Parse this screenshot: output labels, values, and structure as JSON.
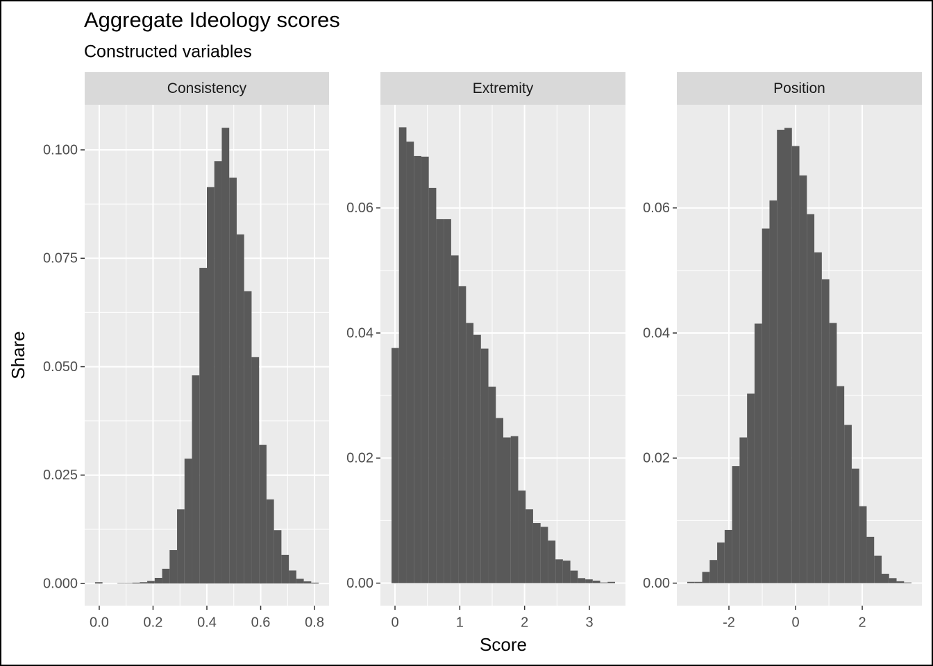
{
  "chart_data": {
    "type": "histogram",
    "title": "Aggregate Ideology scores",
    "subtitle": "Constructed variables",
    "x_label": "Score",
    "y_label": "Share",
    "color": "#595959",
    "grid": true,
    "facets": [
      {
        "name": "Consistency",
        "bins": [
          -0.0155,
          0.0122,
          0.0399,
          0.0676,
          0.0953,
          0.123,
          0.1507,
          0.1784,
          0.2061,
          0.2338,
          0.2615,
          0.2892,
          0.3169,
          0.3446,
          0.3723,
          0.4,
          0.4277,
          0.4554,
          0.4831,
          0.5108,
          0.5385,
          0.5662,
          0.5939,
          0.6216,
          0.6493,
          0.677,
          0.7047,
          0.7324,
          0.7601,
          0.7878,
          0.8155
        ],
        "counts": [
          0.0003,
          0,
          0,
          0.0001,
          0.0001,
          0.0002,
          0.0003,
          0.0006,
          0.0013,
          0.0034,
          0.0077,
          0.0171,
          0.0288,
          0.048,
          0.0728,
          0.0914,
          0.0974,
          0.1051,
          0.0936,
          0.0805,
          0.0674,
          0.0522,
          0.032,
          0.0194,
          0.0123,
          0.0066,
          0.003,
          0.0011,
          0.0005,
          0.0002
        ],
        "xlim": [
          -0.054,
          0.854
        ],
        "ylim": [
          -0.0051,
          0.1104
        ],
        "xticks": [
          {
            "value": 0,
            "label": "0.0"
          },
          {
            "value": 0.2,
            "label": "0.2"
          },
          {
            "value": 0.4,
            "label": "0.4"
          },
          {
            "value": 0.6,
            "label": "0.6"
          },
          {
            "value": 0.8,
            "label": "0.8"
          }
        ],
        "yticks": [
          {
            "value": 0,
            "label": "0.000"
          },
          {
            "value": 0.025,
            "label": "0.025"
          },
          {
            "value": 0.05,
            "label": "0.050"
          },
          {
            "value": 0.075,
            "label": "0.075"
          },
          {
            "value": 0.1,
            "label": "0.100"
          }
        ]
      },
      {
        "name": "Extremity",
        "bins": [
          -0.0536,
          0.0614,
          0.1764,
          0.2914,
          0.4064,
          0.5214,
          0.6364,
          0.7514,
          0.8664,
          0.9814,
          1.0964,
          1.2114,
          1.3264,
          1.4414,
          1.5564,
          1.6714,
          1.7864,
          1.9014,
          2.0164,
          2.1314,
          2.2464,
          2.3614,
          2.4764,
          2.5914,
          2.7064,
          2.8214,
          2.9364,
          3.0514,
          3.1664,
          3.2814,
          3.3964
        ],
        "counts": [
          0.0376,
          0.0729,
          0.0706,
          0.0683,
          0.0682,
          0.0632,
          0.0582,
          0.0582,
          0.0524,
          0.0475,
          0.0416,
          0.0397,
          0.0375,
          0.0314,
          0.0264,
          0.0233,
          0.0235,
          0.0148,
          0.0118,
          0.0096,
          0.009,
          0.0068,
          0.0038,
          0.0036,
          0.002,
          0.0008,
          0.0006,
          0.0004,
          0.0001,
          0.0002
        ],
        "xlim": [
          -0.225,
          3.557
        ],
        "ylim": [
          -0.0036,
          0.0765
        ],
        "xticks": [
          0,
          1,
          2,
          3
        ],
        "yticks": [
          {
            "value": 0,
            "label": "0.00"
          },
          {
            "value": 0.02,
            "label": "0.02"
          },
          {
            "value": 0.04,
            "label": "0.04"
          },
          {
            "value": 0.06,
            "label": "0.06"
          }
        ]
      },
      {
        "name": "Position",
        "bins": [
          -3.25,
          -3.0257,
          -2.8014,
          -2.5771,
          -2.3528,
          -2.1285,
          -1.9042,
          -1.6799,
          -1.4556,
          -1.2313,
          -1.007,
          -0.7827,
          -0.5584,
          -0.3341,
          -0.1098,
          0.1145,
          0.3388,
          0.5631,
          0.7874,
          1.0117,
          1.236,
          1.4603,
          1.6846,
          1.9089,
          2.1332,
          2.3575,
          2.5818,
          2.8061,
          3.0304,
          3.2547,
          3.479
        ],
        "counts": [
          0.0002,
          0.0002,
          0.0018,
          0.0037,
          0.0065,
          0.0085,
          0.0187,
          0.0233,
          0.0303,
          0.0415,
          0.0567,
          0.0612,
          0.0725,
          0.0728,
          0.0699,
          0.0652,
          0.059,
          0.0529,
          0.0486,
          0.0416,
          0.0315,
          0.0253,
          0.0183,
          0.0123,
          0.0074,
          0.0044,
          0.0015,
          0.0008,
          0.0003,
          0.0001
        ],
        "xlim": [
          -3.5625,
          3.79
        ],
        "ylim": [
          -0.0036,
          0.0765
        ],
        "xticks": [
          -2,
          0,
          2
        ],
        "yticks": [
          {
            "value": 0,
            "label": "0.00"
          },
          {
            "value": 0.02,
            "label": "0.02"
          },
          {
            "value": 0.04,
            "label": "0.04"
          },
          {
            "value": 0.06,
            "label": "0.06"
          }
        ]
      }
    ]
  }
}
